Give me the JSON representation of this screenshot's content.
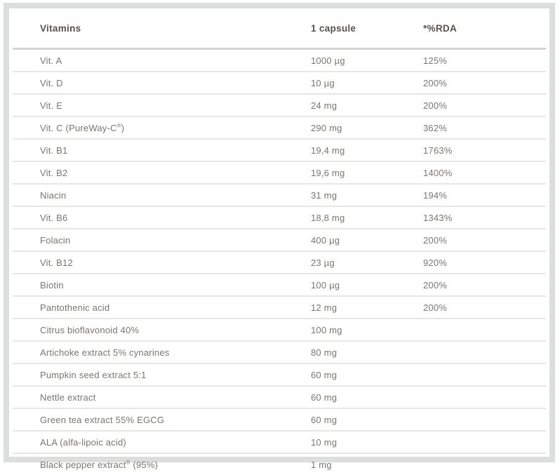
{
  "table": {
    "columns": [
      "Vitamins",
      "1 capsule",
      "*%RDA"
    ],
    "rows": [
      {
        "name": "Vit. A",
        "amount": "1000 µg",
        "rda": "125%"
      },
      {
        "name": "Vit. D",
        "amount": "10 µg",
        "rda": "200%"
      },
      {
        "name": "Vit. E",
        "amount": "24 mg",
        "rda": "200%"
      },
      {
        "name": "Vit. C (PureWay-C®)",
        "amount": "290 mg",
        "rda": "362%"
      },
      {
        "name": "Vit. B1",
        "amount": "19,4 mg",
        "rda": "1763%"
      },
      {
        "name": "Vit. B2",
        "amount": "19,6 mg",
        "rda": "1400%"
      },
      {
        "name": "Niacin",
        "amount": "31 mg",
        "rda": "194%"
      },
      {
        "name": "Vit. B6",
        "amount": "18,8 mg",
        "rda": "1343%"
      },
      {
        "name": "Folacin",
        "amount": "400 µg",
        "rda": "200%"
      },
      {
        "name": "Vit. B12",
        "amount": "23 µg",
        "rda": "920%"
      },
      {
        "name": "Biotin",
        "amount": "100 µg",
        "rda": "200%"
      },
      {
        "name": "Pantothenic acid",
        "amount": "12 mg",
        "rda": "200%"
      },
      {
        "name": "Citrus bioflavonoid 40%",
        "amount": "100 mg",
        "rda": ""
      },
      {
        "name": "Artichoke extract 5% cynarines",
        "amount": "80 mg",
        "rda": ""
      },
      {
        "name": "Pumpkin seed extract 5:1",
        "amount": "60 mg",
        "rda": ""
      },
      {
        "name": "Nettle extract",
        "amount": "60 mg",
        "rda": ""
      },
      {
        "name": "Green tea extract 55% EGCG",
        "amount": "60 mg",
        "rda": ""
      },
      {
        "name": "ALA (alfa-lipoic acid)",
        "amount": "10 mg",
        "rda": ""
      },
      {
        "name": "Black pepper extract® (95%)",
        "amount": "1 mg",
        "rda": ""
      }
    ]
  },
  "colors": {
    "panel_border": "#dcdddd",
    "header_text": "#56524e",
    "body_text": "#7a7672",
    "header_divider": "#d4d4d4",
    "row_divider": "#e6e6e6",
    "background": "#ffffff"
  }
}
